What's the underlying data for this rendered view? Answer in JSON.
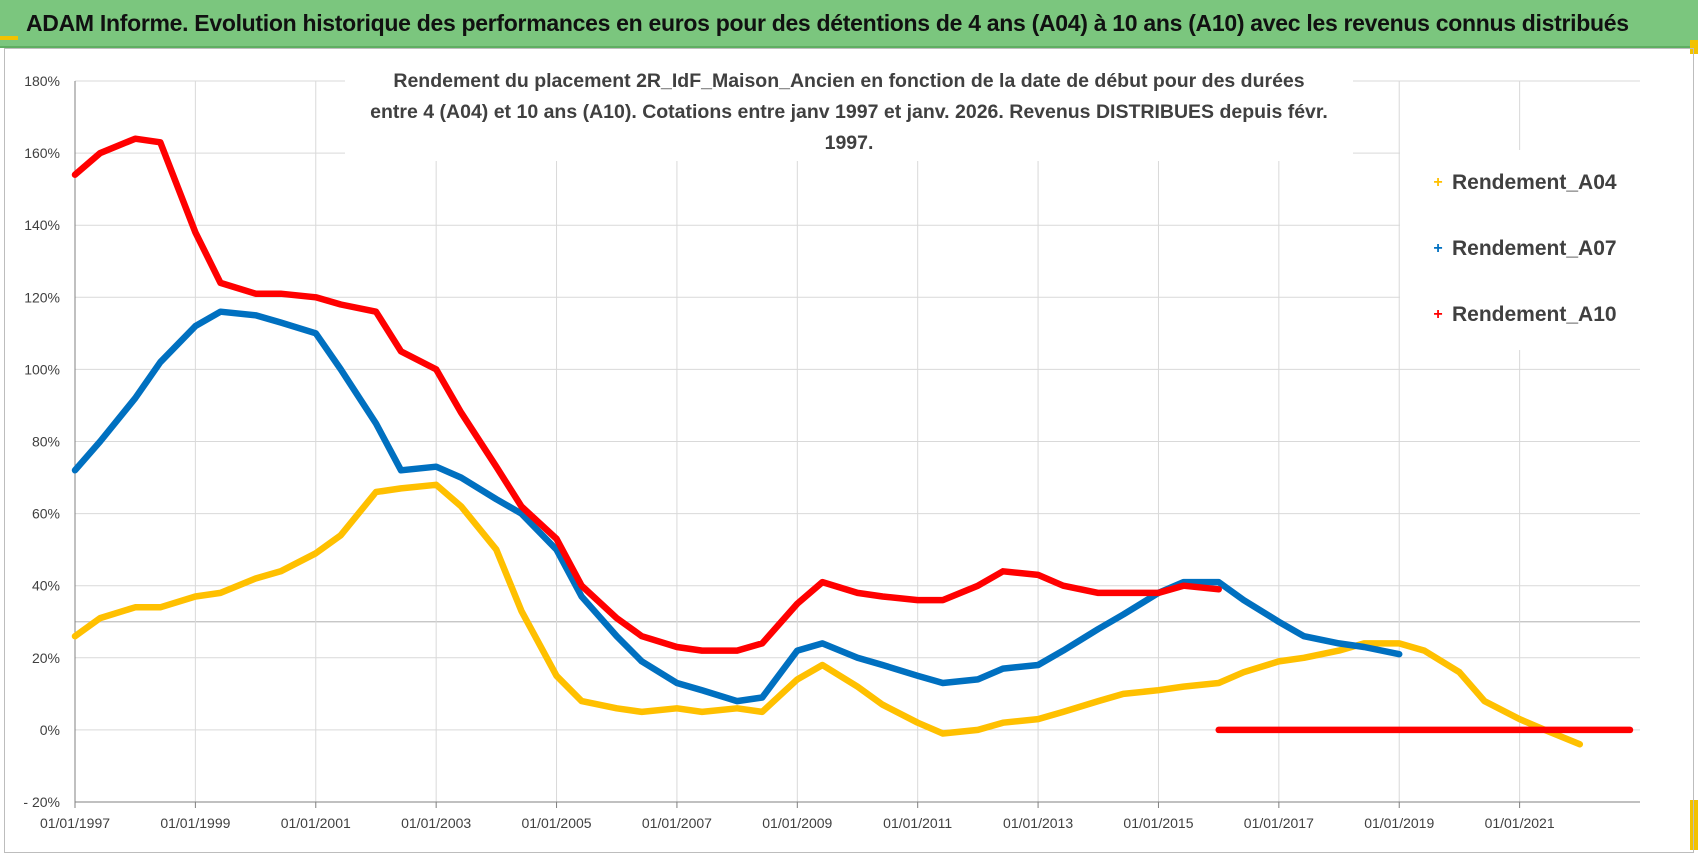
{
  "header": {
    "title": "ADAM Informe. Evolution historique des performances en euros pour des détentions de 4 ans (A04) à 10 ans (A10) avec les revenus connus distribués"
  },
  "colors": {
    "header_bg": "#7bc67e",
    "A04": "#ffc000",
    "A07": "#0070c0",
    "A10": "#ff0000"
  },
  "chart_data": {
    "type": "scatter",
    "title_lines": [
      "Rendement du placement 2R_IdF_Maison_Ancien en fonction de la date de début pour des durées",
      "entre 4 (A04) et 10 ans (A10).  Cotations entre janv 1997 et janv. 2026. Revenus DISTRIBUES depuis févr. 1997."
    ],
    "xlabel": "",
    "ylabel": "",
    "x_range": [
      "1997-01-01",
      "2023-01-01"
    ],
    "y_range": [
      -20,
      180
    ],
    "y_ticks": [
      -20,
      0,
      20,
      40,
      60,
      80,
      100,
      120,
      140,
      160,
      180
    ],
    "y_tick_labels": [
      "- 20%",
      "0%",
      "20%",
      "40%",
      "60%",
      "80%",
      "100%",
      "120%",
      "140%",
      "160%",
      "180%"
    ],
    "x_tick_labels": [
      "01/01/1997",
      "01/01/1999",
      "01/01/2001",
      "01/01/2003",
      "01/01/2005",
      "01/01/2007",
      "01/01/2009",
      "01/01/2011",
      "01/01/2013",
      "01/01/2015",
      "01/01/2017",
      "01/01/2019",
      "01/01/2021"
    ],
    "x_tick_years": [
      1997,
      1999,
      2001,
      2003,
      2005,
      2007,
      2009,
      2011,
      2013,
      2015,
      2017,
      2019,
      2021
    ],
    "grid": true,
    "legend_position": "top-right",
    "series": [
      {
        "name": "Rendement_A04",
        "color": "#ffc000",
        "x": [
          "1997-01",
          "1997-06",
          "1998-01",
          "1998-06",
          "1999-01",
          "1999-06",
          "2000-01",
          "2000-06",
          "2001-01",
          "2001-06",
          "2002-01",
          "2002-06",
          "2003-01",
          "2003-06",
          "2004-01",
          "2004-06",
          "2005-01",
          "2005-06",
          "2006-01",
          "2006-06",
          "2007-01",
          "2007-06",
          "2008-01",
          "2008-06",
          "2009-01",
          "2009-06",
          "2010-01",
          "2010-06",
          "2011-01",
          "2011-06",
          "2012-01",
          "2012-06",
          "2013-01",
          "2013-06",
          "2014-01",
          "2014-06",
          "2015-01",
          "2015-06",
          "2016-01",
          "2016-06",
          "2017-01",
          "2017-06",
          "2018-01",
          "2018-06",
          "2019-01",
          "2019-06",
          "2020-01",
          "2020-06",
          "2021-01",
          "2021-06",
          "2022-01"
        ],
        "y": [
          26,
          31,
          34,
          34,
          37,
          38,
          42,
          44,
          49,
          54,
          66,
          67,
          68,
          62,
          50,
          33,
          15,
          8,
          6,
          5,
          6,
          5,
          6,
          5,
          14,
          18,
          12,
          7,
          2,
          -1,
          0,
          2,
          3,
          5,
          8,
          10,
          11,
          12,
          13,
          16,
          19,
          20,
          22,
          24,
          24,
          22,
          16,
          8,
          3,
          0,
          -4
        ]
      },
      {
        "name": "Rendement_A07",
        "color": "#0070c0",
        "x": [
          "1997-01",
          "1997-06",
          "1998-01",
          "1998-06",
          "1999-01",
          "1999-06",
          "2000-01",
          "2000-06",
          "2001-01",
          "2001-06",
          "2002-01",
          "2002-06",
          "2003-01",
          "2003-06",
          "2004-01",
          "2004-06",
          "2005-01",
          "2005-06",
          "2006-01",
          "2006-06",
          "2007-01",
          "2007-06",
          "2008-01",
          "2008-06",
          "2009-01",
          "2009-06",
          "2010-01",
          "2010-06",
          "2011-01",
          "2011-06",
          "2012-01",
          "2012-06",
          "2013-01",
          "2013-06",
          "2014-01",
          "2014-06",
          "2015-01",
          "2015-06",
          "2016-01",
          "2016-06",
          "2017-01",
          "2017-06",
          "2018-01",
          "2018-06",
          "2019-01"
        ],
        "y": [
          72,
          80,
          92,
          102,
          112,
          116,
          115,
          113,
          110,
          100,
          85,
          72,
          73,
          70,
          64,
          60,
          50,
          37,
          26,
          19,
          13,
          11,
          8,
          9,
          22,
          24,
          20,
          18,
          15,
          13,
          14,
          17,
          18,
          22,
          28,
          32,
          38,
          41,
          41,
          36,
          30,
          26,
          24,
          23,
          21
        ]
      },
      {
        "name": "Rendement_A10",
        "color": "#ff0000",
        "x": [
          "1997-01",
          "1997-06",
          "1998-01",
          "1998-06",
          "1999-01",
          "1999-06",
          "2000-01",
          "2000-06",
          "2001-01",
          "2001-06",
          "2002-01",
          "2002-06",
          "2003-01",
          "2003-06",
          "2004-01",
          "2004-06",
          "2005-01",
          "2005-06",
          "2006-01",
          "2006-06",
          "2007-01",
          "2007-06",
          "2008-01",
          "2008-06",
          "2009-01",
          "2009-06",
          "2010-01",
          "2010-06",
          "2011-01",
          "2011-06",
          "2012-01",
          "2012-06",
          "2013-01",
          "2013-06",
          "2014-01",
          "2014-06",
          "2015-01",
          "2015-06",
          "2016-01"
        ],
        "y": [
          154,
          160,
          164,
          163,
          138,
          124,
          121,
          121,
          120,
          118,
          116,
          105,
          100,
          88,
          73,
          62,
          53,
          40,
          31,
          26,
          23,
          22,
          22,
          24,
          35,
          41,
          38,
          37,
          36,
          36,
          40,
          44,
          43,
          40,
          38,
          38,
          38,
          40,
          39
        ]
      },
      {
        "name": "",
        "color": "#ff0000",
        "x": [
          "2016-01",
          "2022-11"
        ],
        "y": [
          0,
          0
        ]
      }
    ]
  }
}
